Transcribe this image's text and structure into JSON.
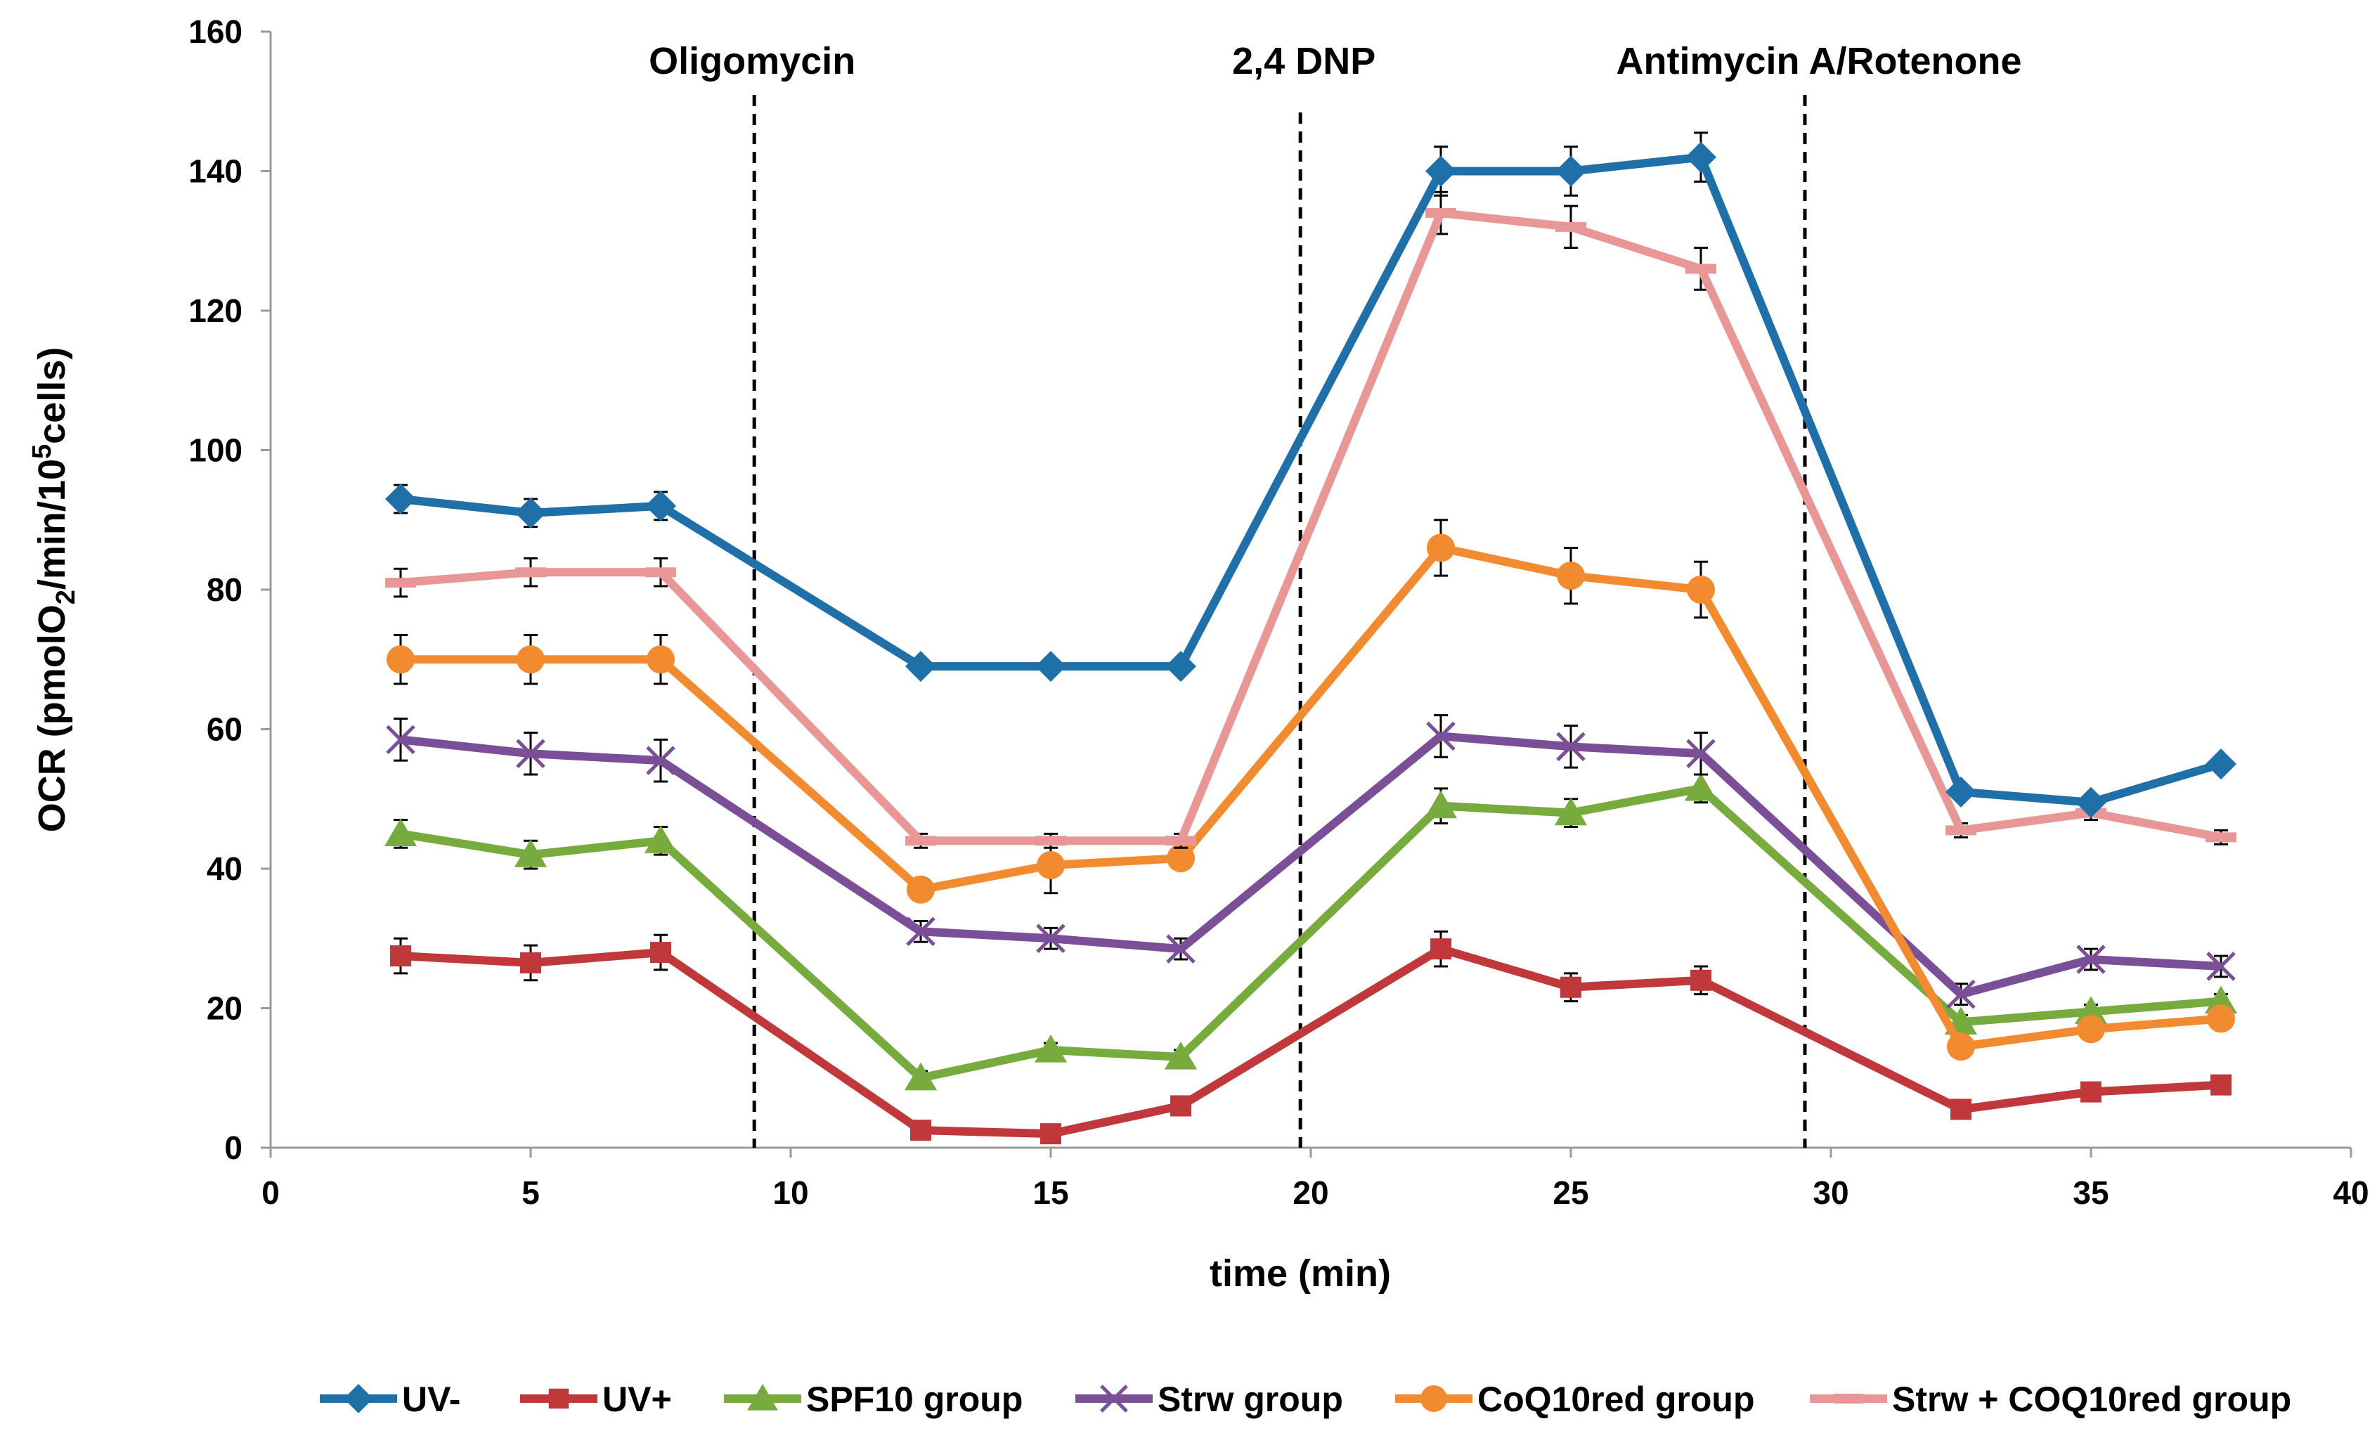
{
  "chart_data": {
    "type": "line",
    "title": "",
    "xlabel": "time (min)",
    "ylabel": {
      "prefix": "OCR (pmolO",
      "sub": "2",
      "middle": "/min/10",
      "sup": "5",
      "suffix": "cells)"
    },
    "xlim": [
      0,
      40
    ],
    "ylim": [
      0,
      160
    ],
    "xticks": [
      "0",
      "5",
      "10",
      "15",
      "20",
      "25",
      "30",
      "35",
      "40"
    ],
    "yticks": [
      "0",
      "20",
      "40",
      "60",
      "80",
      "100",
      "120",
      "140",
      "160"
    ],
    "grid": false,
    "legend_position": "bottom",
    "annotations": [
      {
        "label": "Oligomycin",
        "x": 9.3
      },
      {
        "label": "2,4 DNP",
        "x": 19.8
      },
      {
        "label": "Antimycin A/Rotenone",
        "x": 29.5
      }
    ],
    "x": [
      2.5,
      5,
      7.5,
      12.5,
      15,
      17.5,
      22.5,
      25,
      27.5,
      32.5,
      35,
      37.5
    ],
    "series": [
      {
        "name": "UV-",
        "color": "#1f6fa8",
        "marker": "diamond",
        "values": [
          93,
          91,
          92,
          69,
          69,
          69,
          140,
          140,
          142,
          51,
          49.5,
          55
        ],
        "errors": [
          2,
          2,
          2,
          1,
          1,
          1,
          3.5,
          3.5,
          3.5,
          1,
          1,
          1
        ]
      },
      {
        "name": "UV+",
        "color": "#c0383a",
        "marker": "square",
        "values": [
          27.5,
          26.5,
          28,
          2.5,
          2,
          6,
          28.5,
          23,
          24,
          5.5,
          8,
          9
        ],
        "errors": [
          2.5,
          2.5,
          2.5,
          1,
          1,
          1,
          2.5,
          2,
          2,
          1,
          1,
          1
        ]
      },
      {
        "name": "SPF10 group",
        "color": "#77ab3d",
        "marker": "triangle",
        "values": [
          45,
          42,
          44,
          10,
          14,
          13,
          49,
          48,
          51.5,
          18,
          19.5,
          21
        ],
        "errors": [
          2,
          2,
          2,
          1,
          1,
          1,
          2.5,
          2,
          2,
          1,
          1,
          1
        ]
      },
      {
        "name": "Strw group",
        "color": "#7a4f97",
        "marker": "x",
        "values": [
          58.5,
          56.5,
          55.5,
          31,
          30,
          28.5,
          59,
          57.5,
          56.5,
          22,
          27,
          26
        ],
        "errors": [
          3,
          3,
          3,
          1.5,
          1.5,
          1.5,
          3,
          3,
          3,
          1.5,
          1.5,
          1.5
        ]
      },
      {
        "name": "CoQ10red group",
        "color": "#f28a30",
        "marker": "circle",
        "values": [
          70,
          70,
          70,
          37,
          40.5,
          41.5,
          86,
          82,
          80,
          14.5,
          17,
          18.5
        ],
        "errors": [
          3.5,
          3.5,
          3.5,
          1.5,
          4,
          1.5,
          4,
          4,
          4,
          1,
          1,
          1
        ]
      },
      {
        "name": "Strw + COQ10red group",
        "color": "#e89696",
        "marker": "dash",
        "values": [
          81,
          82.5,
          82.5,
          44,
          44,
          44,
          134,
          132,
          126,
          45.5,
          48,
          44.5
        ],
        "errors": [
          2,
          2,
          2,
          1,
          1,
          1,
          3,
          3,
          3,
          1,
          1,
          1
        ]
      }
    ]
  }
}
